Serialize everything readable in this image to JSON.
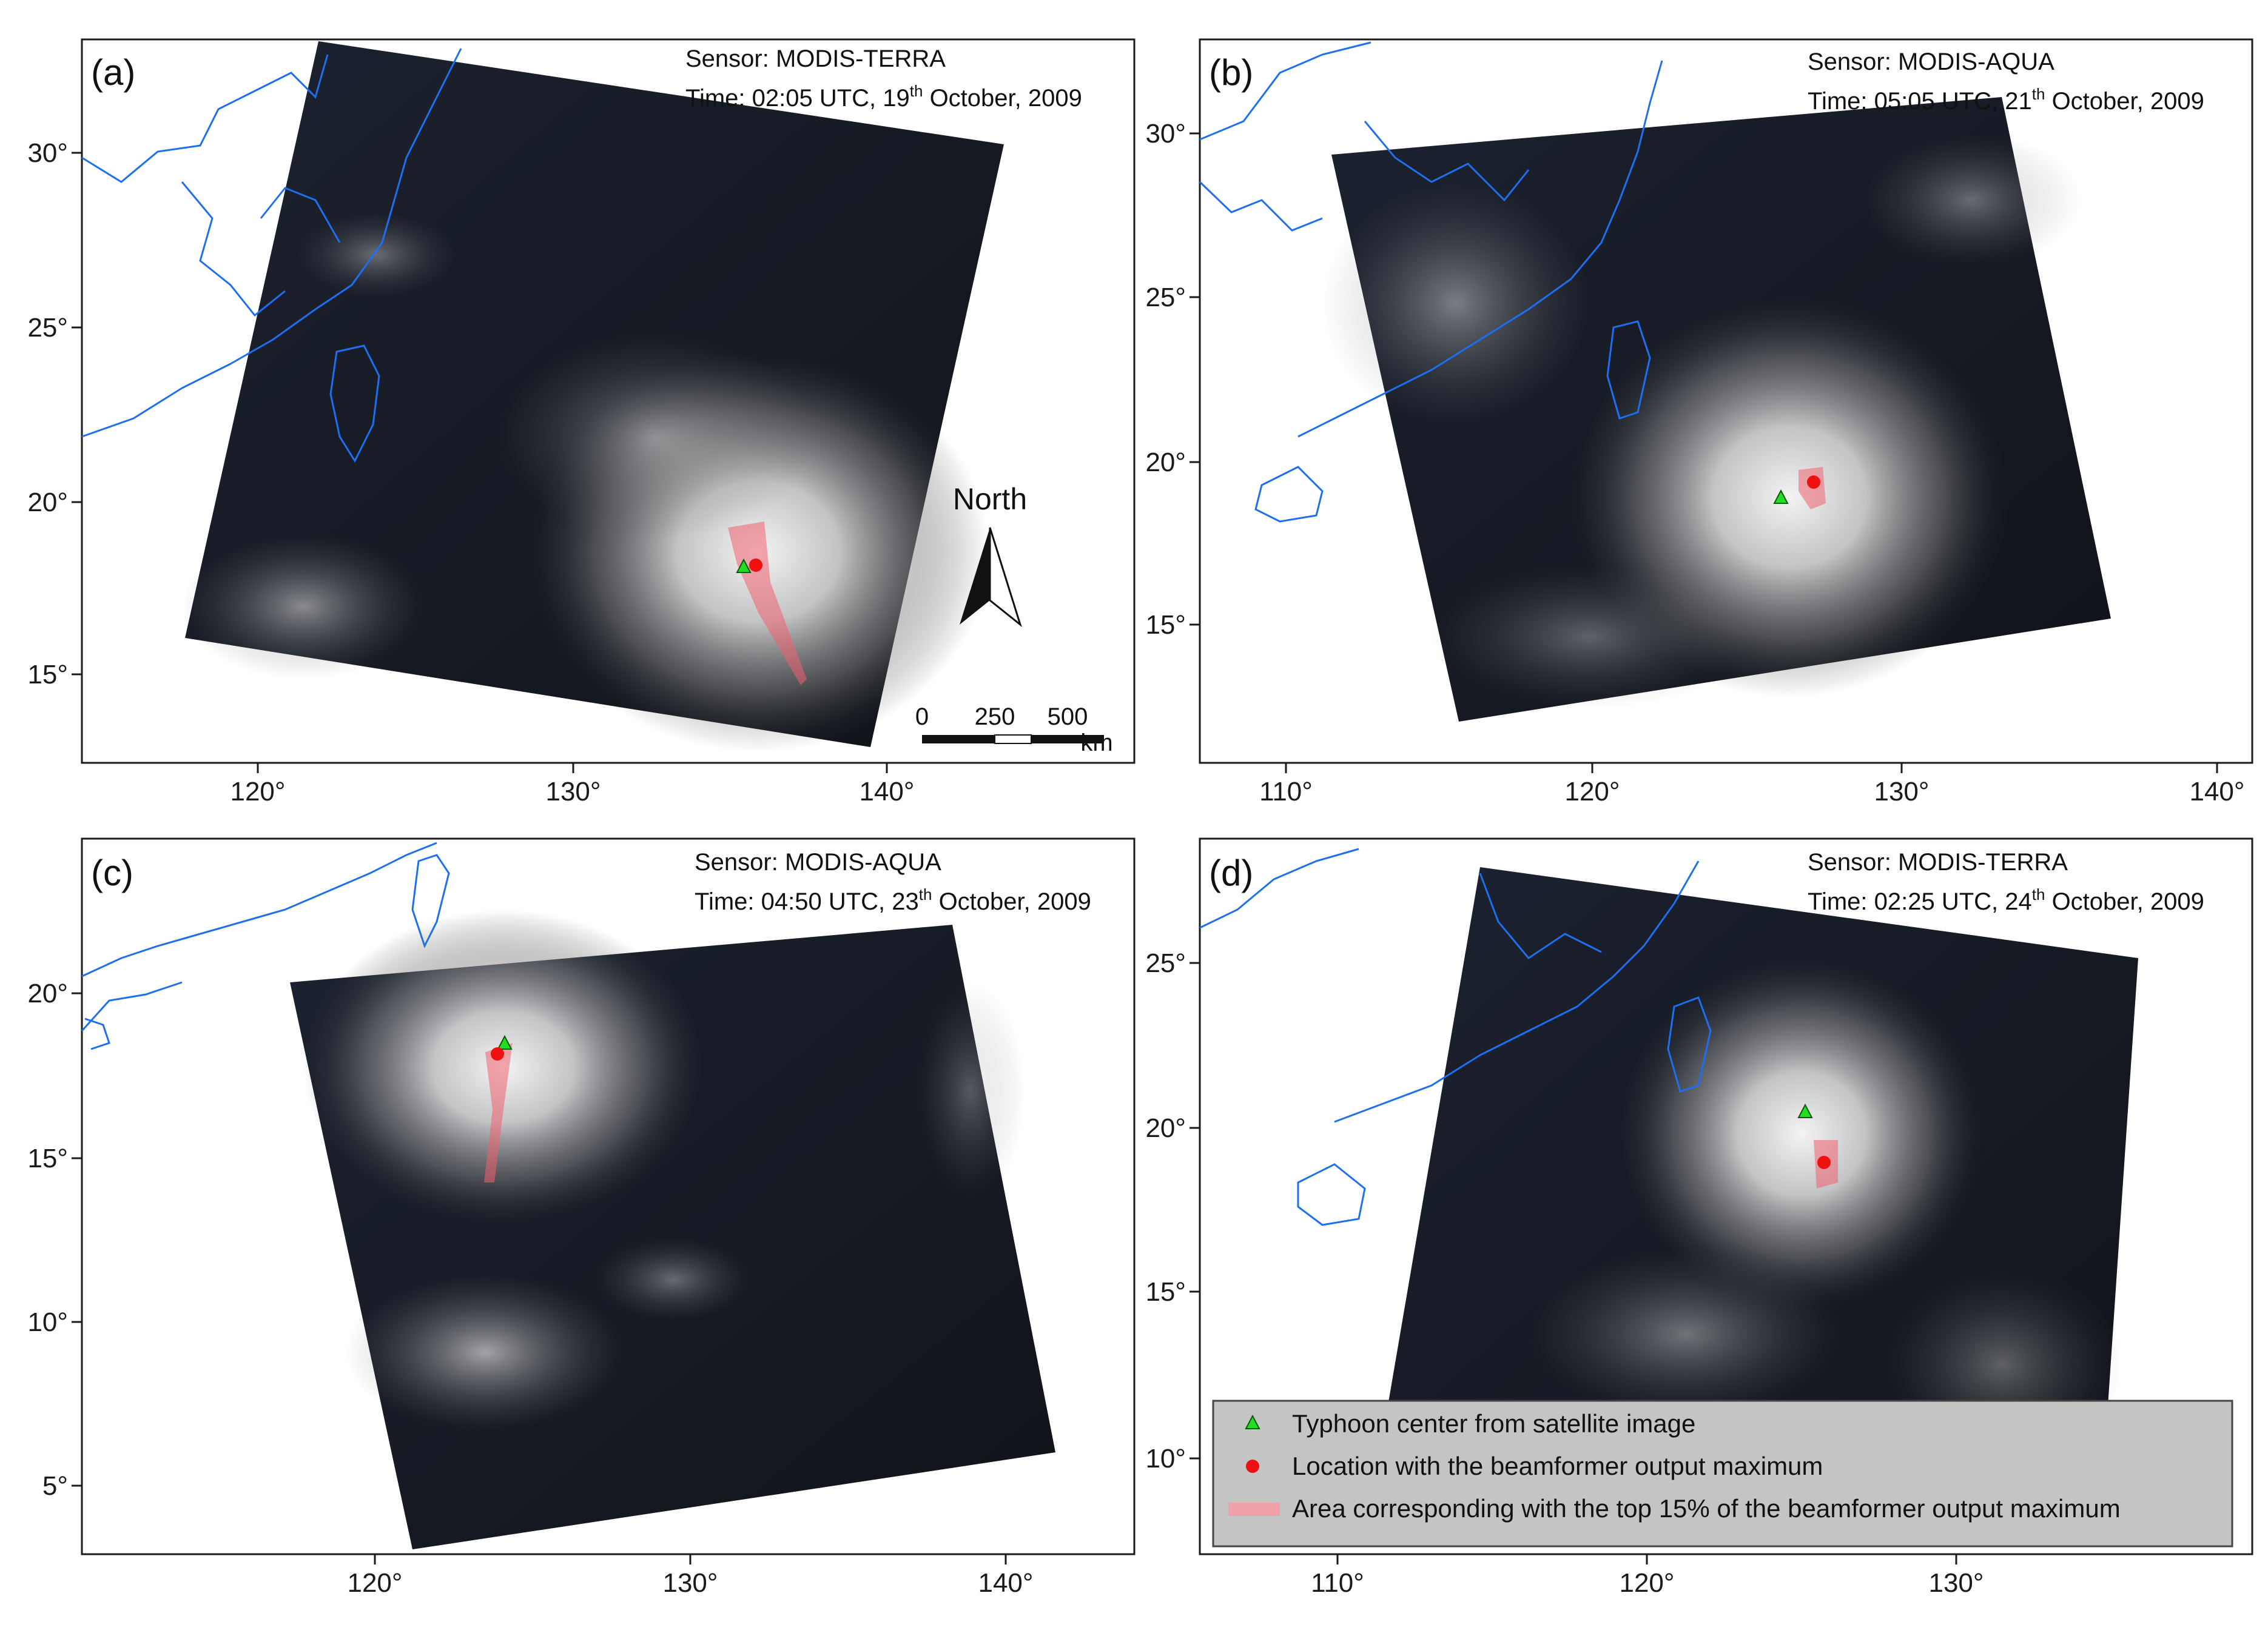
{
  "panels": [
    {
      "id": "a",
      "label": "(a)",
      "sensor": "Sensor: MODIS-TERRA",
      "time": {
        "prefix": "Time: 02:05 UTC, 19",
        "sup": "th",
        "suffix": " October, 2009"
      },
      "x_ticks": [
        "120°",
        "130°",
        "140°"
      ],
      "y_ticks": [
        "30°",
        "25°",
        "20°",
        "15°"
      ],
      "typhoon_center": {
        "lon": 133.7,
        "lat": 18.0
      },
      "beamformer_max": {
        "lon": 134.1,
        "lat": 18.2
      },
      "north_arrow": "North",
      "scale_bar": {
        "labels": [
          "0",
          "250",
          "500"
        ],
        "unit": "km"
      }
    },
    {
      "id": "b",
      "label": "(b)",
      "sensor": "Sensor: MODIS-AQUA",
      "time": {
        "prefix": "Time: 05:05 UTC, 21",
        "sup": "th",
        "suffix": " October, 2009"
      },
      "x_ticks": [
        "110°",
        "120°",
        "130°",
        "140°"
      ],
      "y_ticks": [
        "30°",
        "25°",
        "20°",
        "15°"
      ],
      "typhoon_center": {
        "lon": 126.0,
        "lat": 18.9
      },
      "beamformer_max": {
        "lon": 126.9,
        "lat": 19.4
      }
    },
    {
      "id": "c",
      "label": "(c)",
      "sensor": "Sensor: MODIS-AQUA",
      "time": {
        "prefix": "Time: 04:50 UTC, 23",
        "sup": "th",
        "suffix": " October, 2009"
      },
      "x_ticks": [
        "120°",
        "130°",
        "140°"
      ],
      "y_ticks": [
        "20°",
        "15°",
        "10°",
        "5°"
      ],
      "typhoon_center": {
        "lon": 124.1,
        "lat": 18.5
      },
      "beamformer_max": {
        "lon": 123.9,
        "lat": 18.1
      }
    },
    {
      "id": "d",
      "label": "(d)",
      "sensor": "Sensor: MODIS-TERRA",
      "time": {
        "prefix": "Time: 02:25 UTC, 24",
        "sup": "th",
        "suffix": " October, 2009"
      },
      "x_ticks": [
        "110°",
        "120°",
        "130°"
      ],
      "y_ticks": [
        "25°",
        "20°",
        "15°",
        "10°"
      ],
      "typhoon_center": {
        "lon": 125.0,
        "lat": 20.7
      },
      "beamformer_max": {
        "lon": 125.6,
        "lat": 19.1
      }
    }
  ],
  "legend": {
    "items": [
      {
        "symbol": "triangle",
        "color": "#22dd22",
        "label": "Typhoon center from satellite image"
      },
      {
        "symbol": "circle",
        "color": "#ee1111",
        "label": "Location with the beamformer output maximum"
      },
      {
        "symbol": "band",
        "color": "#f0a0a8",
        "label": "Area corresponding with the top 15% of the beamformer output maximum"
      }
    ]
  },
  "colors": {
    "coastline": "#1e6ff0",
    "typhoon_center": "#22dd22",
    "beamformer_max": "#ee1111",
    "beamformer_area": "#f06070",
    "legend_background": "#c4c4c4"
  }
}
